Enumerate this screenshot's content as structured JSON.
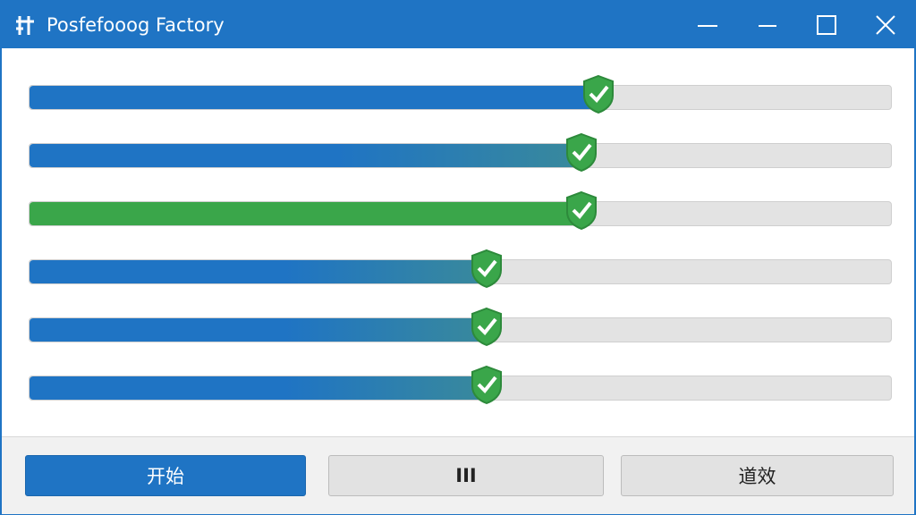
{
  "window": {
    "title": "Posfefooog Factory"
  },
  "progress_bars": [
    {
      "progress": 67,
      "color": "#1f74c4"
    },
    {
      "progress": 65,
      "color": "#1f74c4"
    },
    {
      "progress": 65,
      "color": "#3aa64a"
    },
    {
      "progress": 54,
      "color": "#1f74c4"
    },
    {
      "progress": 54,
      "color": "#1f74c4"
    },
    {
      "progress": 54,
      "color": "#1f74c4"
    }
  ],
  "buttons": [
    "开始",
    "III",
    "道效"
  ]
}
